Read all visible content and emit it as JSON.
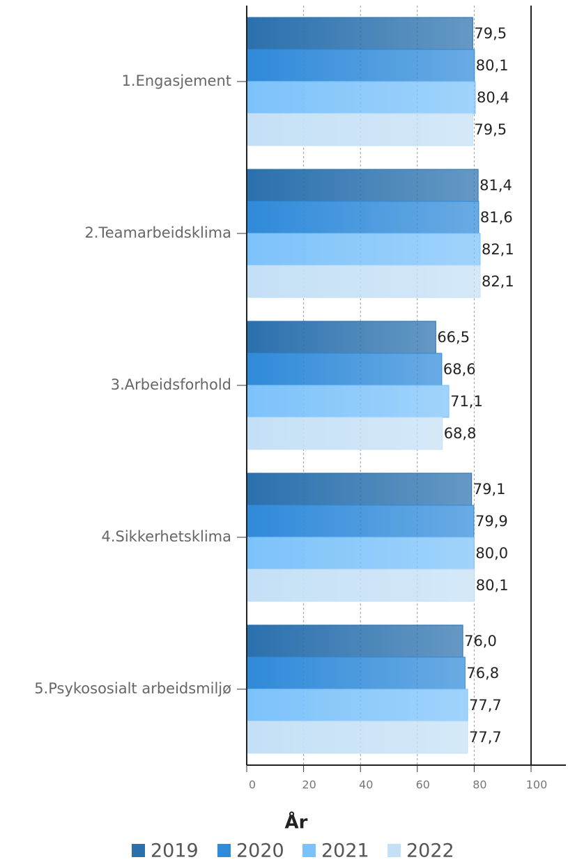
{
  "chart_data": {
    "type": "bar",
    "orientation": "horizontal",
    "categories": [
      "1.Engasjement",
      "2.Teamarbeidsklima",
      "3.Arbeidsforhold",
      "4.Sikkerhetsklima",
      "5.Psykososialt arbeidsmiljø"
    ],
    "series": [
      {
        "name": "2019",
        "color": "#2a70ad",
        "values": [
          79.5,
          81.4,
          66.5,
          79.1,
          76.0
        ],
        "value_labels": [
          "79,5",
          "81,4",
          "66,5",
          "79,1",
          "76,0"
        ]
      },
      {
        "name": "2020",
        "color": "#2f8ad9",
        "values": [
          80.1,
          81.6,
          68.6,
          79.9,
          76.8
        ],
        "value_labels": [
          "80,1",
          "81,6",
          "68,6",
          "79,9",
          "76,8"
        ]
      },
      {
        "name": "2021",
        "color": "#7cc2fa",
        "values": [
          80.4,
          82.1,
          71.1,
          80.0,
          77.7
        ],
        "value_labels": [
          "80,4",
          "82,1",
          "71,1",
          "80,0",
          "77,7"
        ]
      },
      {
        "name": "2022",
        "color": "#c4e0f6",
        "values": [
          79.5,
          82.1,
          68.8,
          80.1,
          77.7
        ],
        "value_labels": [
          "79,5",
          "82,1",
          "68,8",
          "80,1",
          "77,7"
        ]
      }
    ],
    "xlim": [
      0,
      100
    ],
    "xticks": [
      0,
      20,
      40,
      60,
      80,
      100
    ],
    "grid": true,
    "legend_title": "År",
    "legend_position": "bottom"
  }
}
